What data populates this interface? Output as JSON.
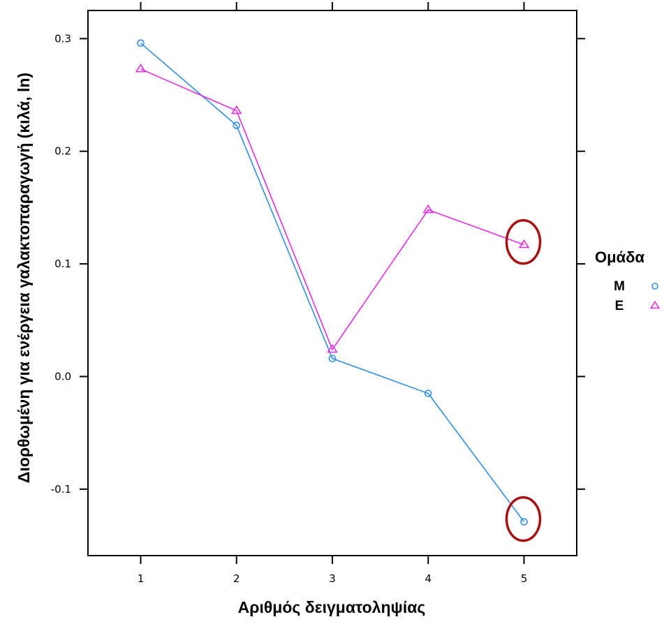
{
  "chart_data": {
    "type": "line",
    "title": "",
    "xlabel": "Αριθμός δειγματοληψίας",
    "ylabel": "Διορθωμένη για ενέργεια γαλακτοπαραγωγή (κιλά, ln)",
    "x": [
      1,
      2,
      3,
      4,
      5
    ],
    "x_ticks": [
      "1",
      "2",
      "3",
      "4",
      "5"
    ],
    "y_ticks": [
      "-0.1",
      "0.0",
      "0.1",
      "0.2",
      "0.3"
    ],
    "xlim": [
      0.45,
      5.55
    ],
    "ylim": [
      -0.159,
      0.325
    ],
    "grid": false,
    "legend": {
      "title": "Ομάδα",
      "placement": "right"
    },
    "series": [
      {
        "name": "M",
        "marker": "circle",
        "color": "#2f8fe6",
        "values": [
          0.296,
          0.223,
          0.016,
          -0.015,
          -0.129
        ]
      },
      {
        "name": "E",
        "marker": "triangle",
        "color": "#e32ee3",
        "values": [
          0.273,
          0.236,
          0.024,
          0.148,
          0.117
        ]
      }
    ],
    "annotations": [
      {
        "type": "circle-highlight",
        "x": 5,
        "y": 0.117,
        "color": "#a80f0f"
      },
      {
        "type": "circle-highlight",
        "x": 5,
        "y": -0.129,
        "color": "#a80f0f"
      }
    ]
  }
}
